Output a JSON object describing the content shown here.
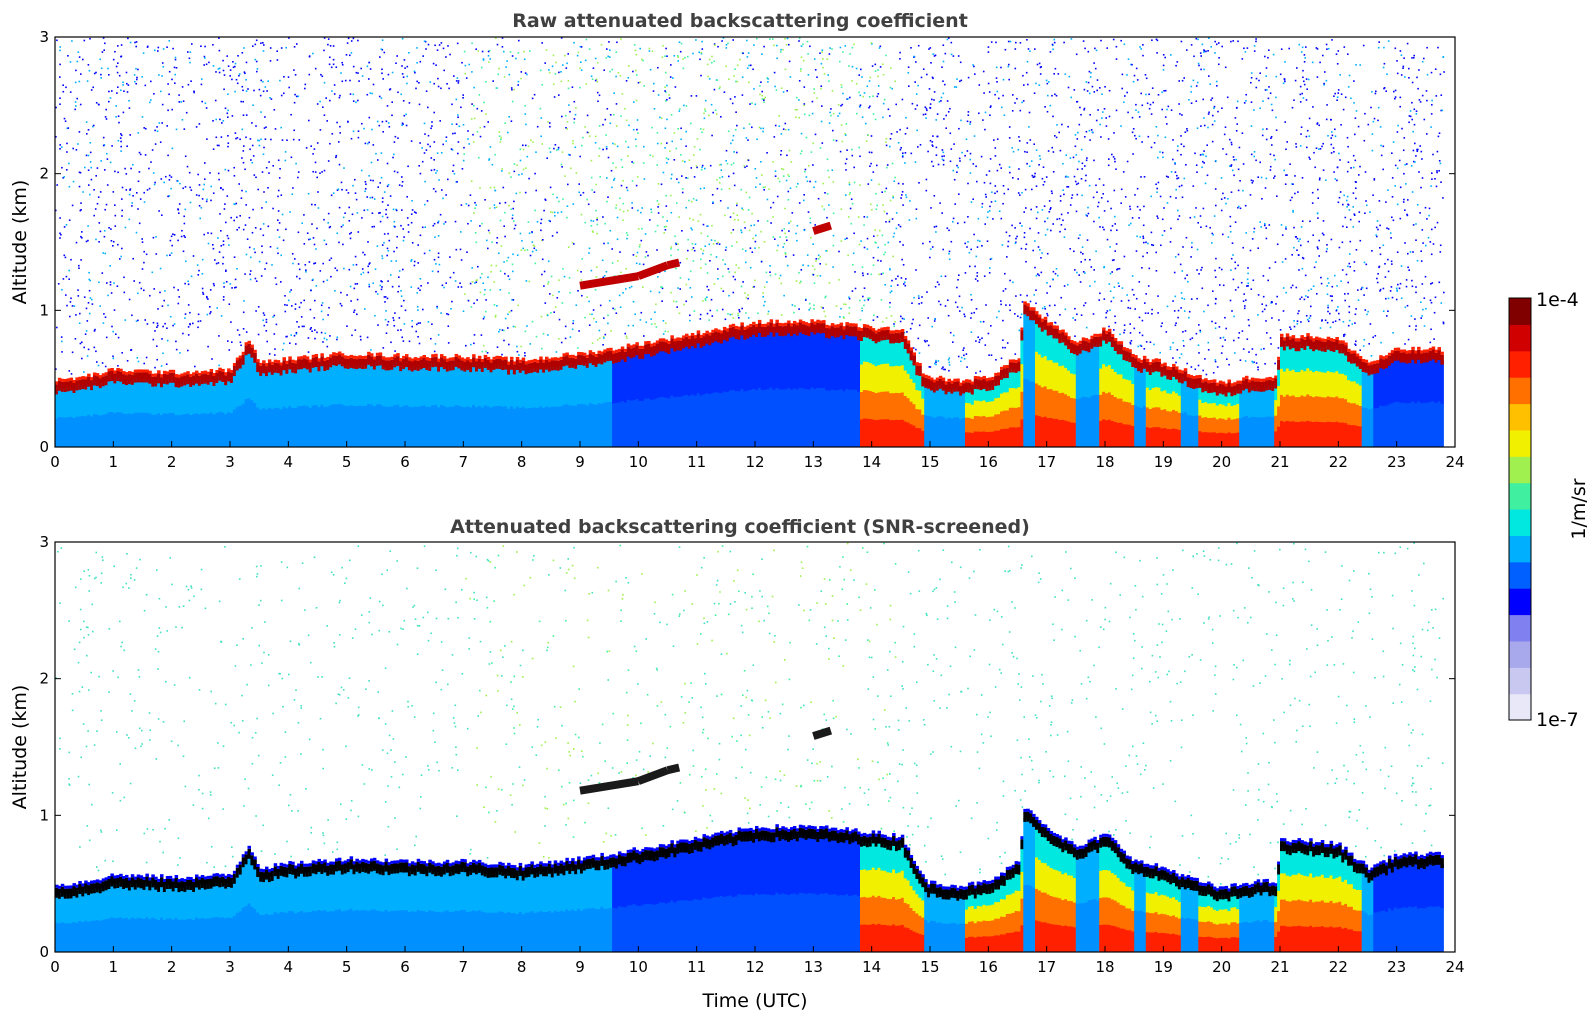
{
  "chart_data": [
    {
      "type": "heatmap",
      "title": "Raw attenuated backscattering coefficient",
      "xlabel": "",
      "ylabel": "Altitude (km)",
      "xlim": [
        0,
        24
      ],
      "ylim": [
        0,
        3
      ],
      "xticks": [
        "0",
        "1",
        "2",
        "3",
        "4",
        "5",
        "6",
        "7",
        "8",
        "9",
        "10",
        "11",
        "12",
        "13",
        "14",
        "15",
        "16",
        "17",
        "18",
        "19",
        "20",
        "21",
        "22",
        "23",
        "24"
      ],
      "yticks": [
        "0",
        "1",
        "2",
        "3"
      ],
      "screened": false,
      "layer_top_km": [
        [
          0.0,
          0.42
        ],
        [
          0.5,
          0.45
        ],
        [
          1.0,
          0.5
        ],
        [
          2.0,
          0.48
        ],
        [
          3.0,
          0.5
        ],
        [
          3.3,
          0.72
        ],
        [
          3.5,
          0.55
        ],
        [
          4.0,
          0.58
        ],
        [
          5.0,
          0.62
        ],
        [
          6.0,
          0.6
        ],
        [
          7.0,
          0.6
        ],
        [
          8.0,
          0.57
        ],
        [
          9.0,
          0.62
        ],
        [
          9.5,
          0.65
        ],
        [
          12.0,
          0.85
        ],
        [
          13.0,
          0.85
        ],
        [
          13.8,
          0.82
        ],
        [
          14.5,
          0.78
        ],
        [
          14.9,
          0.45
        ],
        [
          15.5,
          0.42
        ],
        [
          16.0,
          0.45
        ],
        [
          16.5,
          0.6
        ],
        [
          16.6,
          1.0
        ],
        [
          17.0,
          0.85
        ],
        [
          17.5,
          0.7
        ],
        [
          18.0,
          0.8
        ],
        [
          18.5,
          0.6
        ],
        [
          19.0,
          0.55
        ],
        [
          19.6,
          0.45
        ],
        [
          20.0,
          0.4
        ],
        [
          20.5,
          0.45
        ],
        [
          20.9,
          0.45
        ],
        [
          21.0,
          0.75
        ],
        [
          21.5,
          0.75
        ],
        [
          22.0,
          0.72
        ],
        [
          22.5,
          0.55
        ],
        [
          23.0,
          0.65
        ],
        [
          23.5,
          0.65
        ],
        [
          23.8,
          0.65
        ]
      ],
      "elevated_layer_km": [
        [
          9.0,
          1.18
        ],
        [
          10.0,
          1.25
        ],
        [
          10.5,
          1.33
        ],
        [
          10.7,
          1.35
        ],
        [
          13.0,
          1.58
        ],
        [
          13.3,
          1.62
        ]
      ],
      "high_backscatter_columns_utc": [
        [
          13.8,
          14.9
        ],
        [
          15.6,
          16.6
        ],
        [
          16.8,
          17.5
        ],
        [
          17.9,
          18.5
        ],
        [
          18.7,
          19.3
        ],
        [
          19.6,
          20.3
        ],
        [
          20.9,
          22.4
        ]
      ]
    },
    {
      "type": "heatmap",
      "title": "Attenuated backscattering coefficient (SNR-screened)",
      "xlabel": "Time (UTC)",
      "ylabel": "Altitude (km)",
      "xlim": [
        0,
        24
      ],
      "ylim": [
        0,
        3
      ],
      "xticks": [
        "0",
        "1",
        "2",
        "3",
        "4",
        "5",
        "6",
        "7",
        "8",
        "9",
        "10",
        "11",
        "12",
        "13",
        "14",
        "15",
        "16",
        "17",
        "18",
        "19",
        "20",
        "21",
        "22",
        "23",
        "24"
      ],
      "yticks": [
        "0",
        "1",
        "2",
        "3"
      ],
      "screened": true,
      "layer_top_km": [
        [
          0.0,
          0.42
        ],
        [
          0.5,
          0.45
        ],
        [
          1.0,
          0.5
        ],
        [
          2.0,
          0.48
        ],
        [
          3.0,
          0.5
        ],
        [
          3.3,
          0.72
        ],
        [
          3.5,
          0.55
        ],
        [
          4.0,
          0.58
        ],
        [
          5.0,
          0.62
        ],
        [
          6.0,
          0.6
        ],
        [
          7.0,
          0.6
        ],
        [
          8.0,
          0.57
        ],
        [
          9.0,
          0.62
        ],
        [
          9.5,
          0.65
        ],
        [
          12.0,
          0.85
        ],
        [
          13.0,
          0.85
        ],
        [
          13.8,
          0.82
        ],
        [
          14.5,
          0.78
        ],
        [
          14.9,
          0.45
        ],
        [
          15.5,
          0.42
        ],
        [
          16.0,
          0.45
        ],
        [
          16.5,
          0.6
        ],
        [
          16.6,
          1.0
        ],
        [
          17.0,
          0.85
        ],
        [
          17.5,
          0.7
        ],
        [
          18.0,
          0.8
        ],
        [
          18.5,
          0.6
        ],
        [
          19.0,
          0.55
        ],
        [
          19.6,
          0.45
        ],
        [
          20.0,
          0.4
        ],
        [
          20.5,
          0.45
        ],
        [
          20.9,
          0.45
        ],
        [
          21.0,
          0.75
        ],
        [
          21.5,
          0.75
        ],
        [
          22.0,
          0.72
        ],
        [
          22.5,
          0.55
        ],
        [
          23.0,
          0.65
        ],
        [
          23.5,
          0.65
        ],
        [
          23.8,
          0.65
        ]
      ],
      "elevated_layer_km": [
        [
          9.0,
          1.18
        ],
        [
          10.0,
          1.25
        ],
        [
          10.5,
          1.33
        ],
        [
          10.7,
          1.35
        ],
        [
          13.0,
          1.58
        ],
        [
          13.3,
          1.62
        ]
      ],
      "high_backscatter_columns_utc": [
        [
          13.8,
          14.9
        ],
        [
          15.6,
          16.6
        ],
        [
          16.8,
          17.5
        ],
        [
          17.9,
          18.5
        ],
        [
          18.7,
          19.3
        ],
        [
          19.6,
          20.3
        ],
        [
          20.9,
          22.4
        ]
      ]
    }
  ],
  "colorbar": {
    "label": "1/m/sr",
    "max_label": "1e-4",
    "min_label": "1e-7",
    "colors": [
      "#e8e8f8",
      "#c8c8f0",
      "#a8a8ec",
      "#8080f0",
      "#0000ff",
      "#0060ff",
      "#00b0ff",
      "#00e8e0",
      "#40f0a0",
      "#a0f050",
      "#f0f000",
      "#ffc000",
      "#ff7000",
      "#ff2000",
      "#d00000",
      "#800000"
    ]
  }
}
